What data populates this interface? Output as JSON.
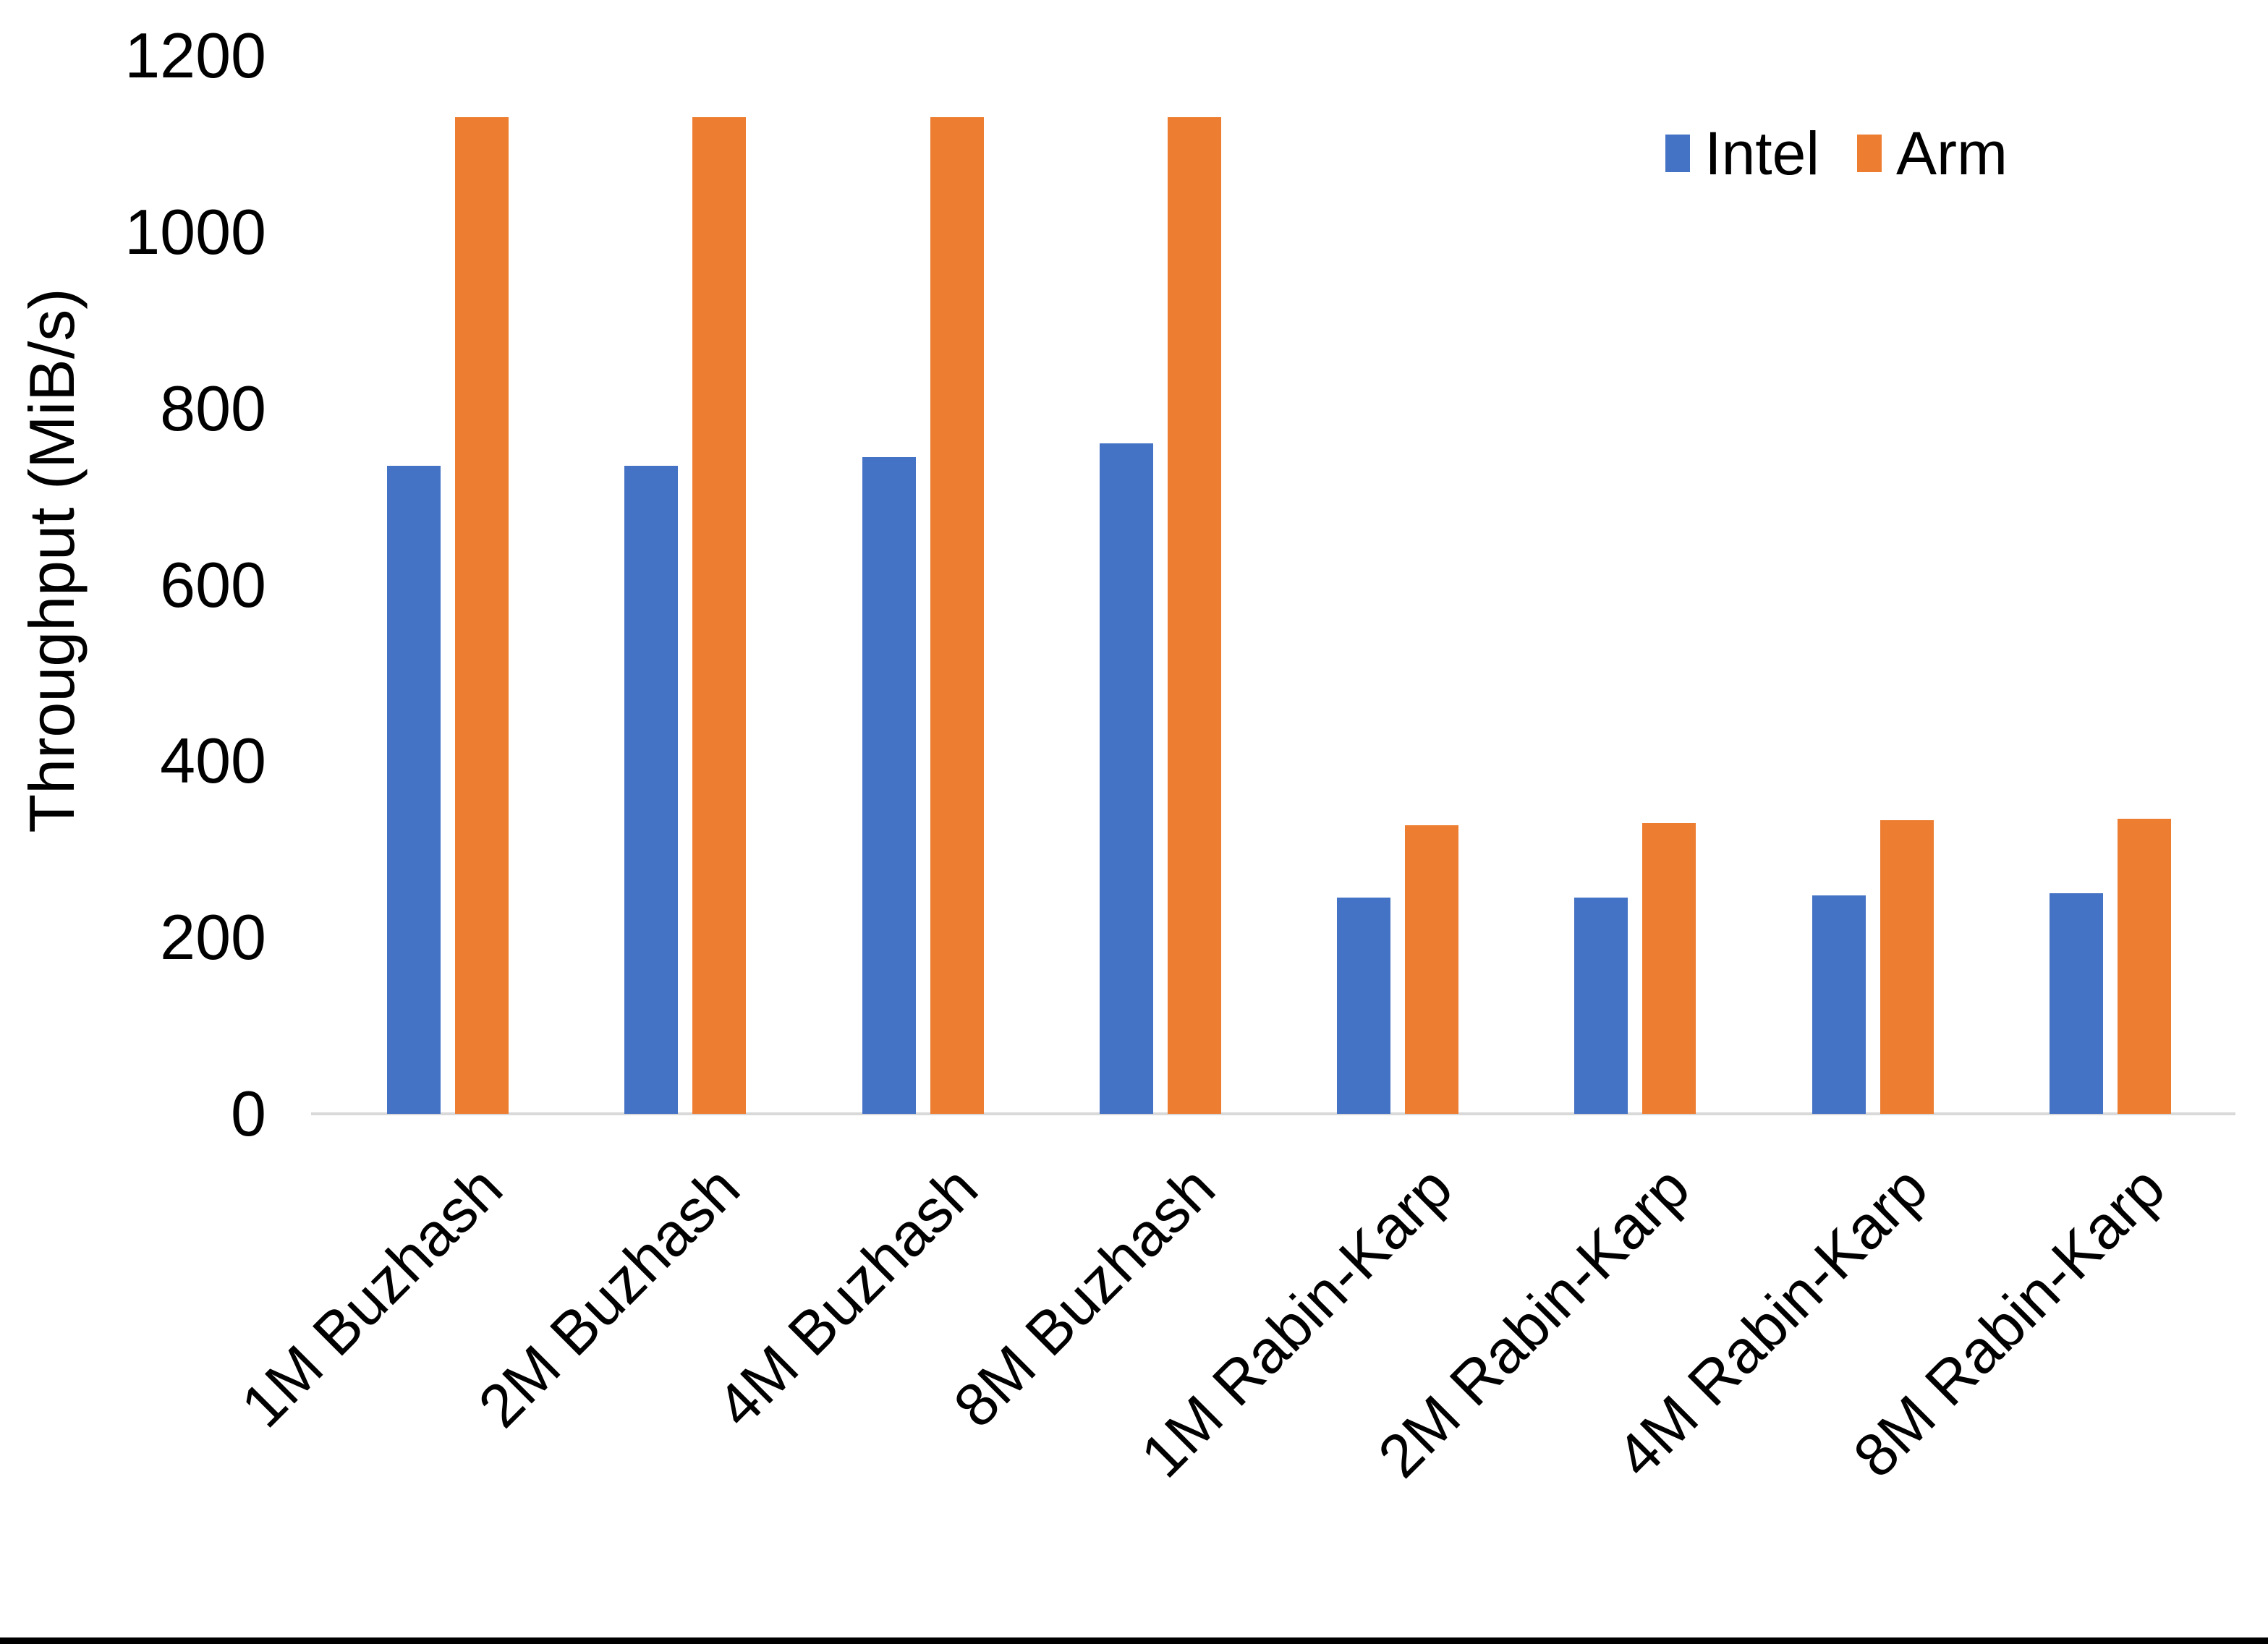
{
  "chart_data": {
    "type": "bar",
    "title": "",
    "categories": [
      "1M Buzhash",
      "2M Buzhash",
      "4M Buzhash",
      "8M Buzhash",
      "1M Rabin-Karp",
      "2M Rabin-Karp",
      "4M Rabin-Karp",
      "8M Rabin-Karp"
    ],
    "series": [
      {
        "name": "Intel",
        "color": "#4472C4",
        "values": [
          735,
          735,
          745,
          760,
          245,
          245,
          248,
          250
        ]
      },
      {
        "name": "Arm",
        "color": "#ED7D31",
        "values": [
          1130,
          1130,
          1130,
          1130,
          327,
          330,
          333,
          335
        ]
      }
    ],
    "xlabel": "",
    "ylabel": "Throughput (MiB/s)",
    "ylim": [
      0,
      1200
    ],
    "ytick_step": 200,
    "yticks": [
      "0",
      "200",
      "400",
      "600",
      "800",
      "1000",
      "1200"
    ],
    "grid": false,
    "legend_position": "top-right"
  },
  "colors": {
    "background": "#FFFFFF",
    "axis_line": "#D9D9D9",
    "text": "#000000",
    "bottom_bar": "#000000",
    "intel": "#4472C4",
    "arm": "#ED7D31"
  }
}
